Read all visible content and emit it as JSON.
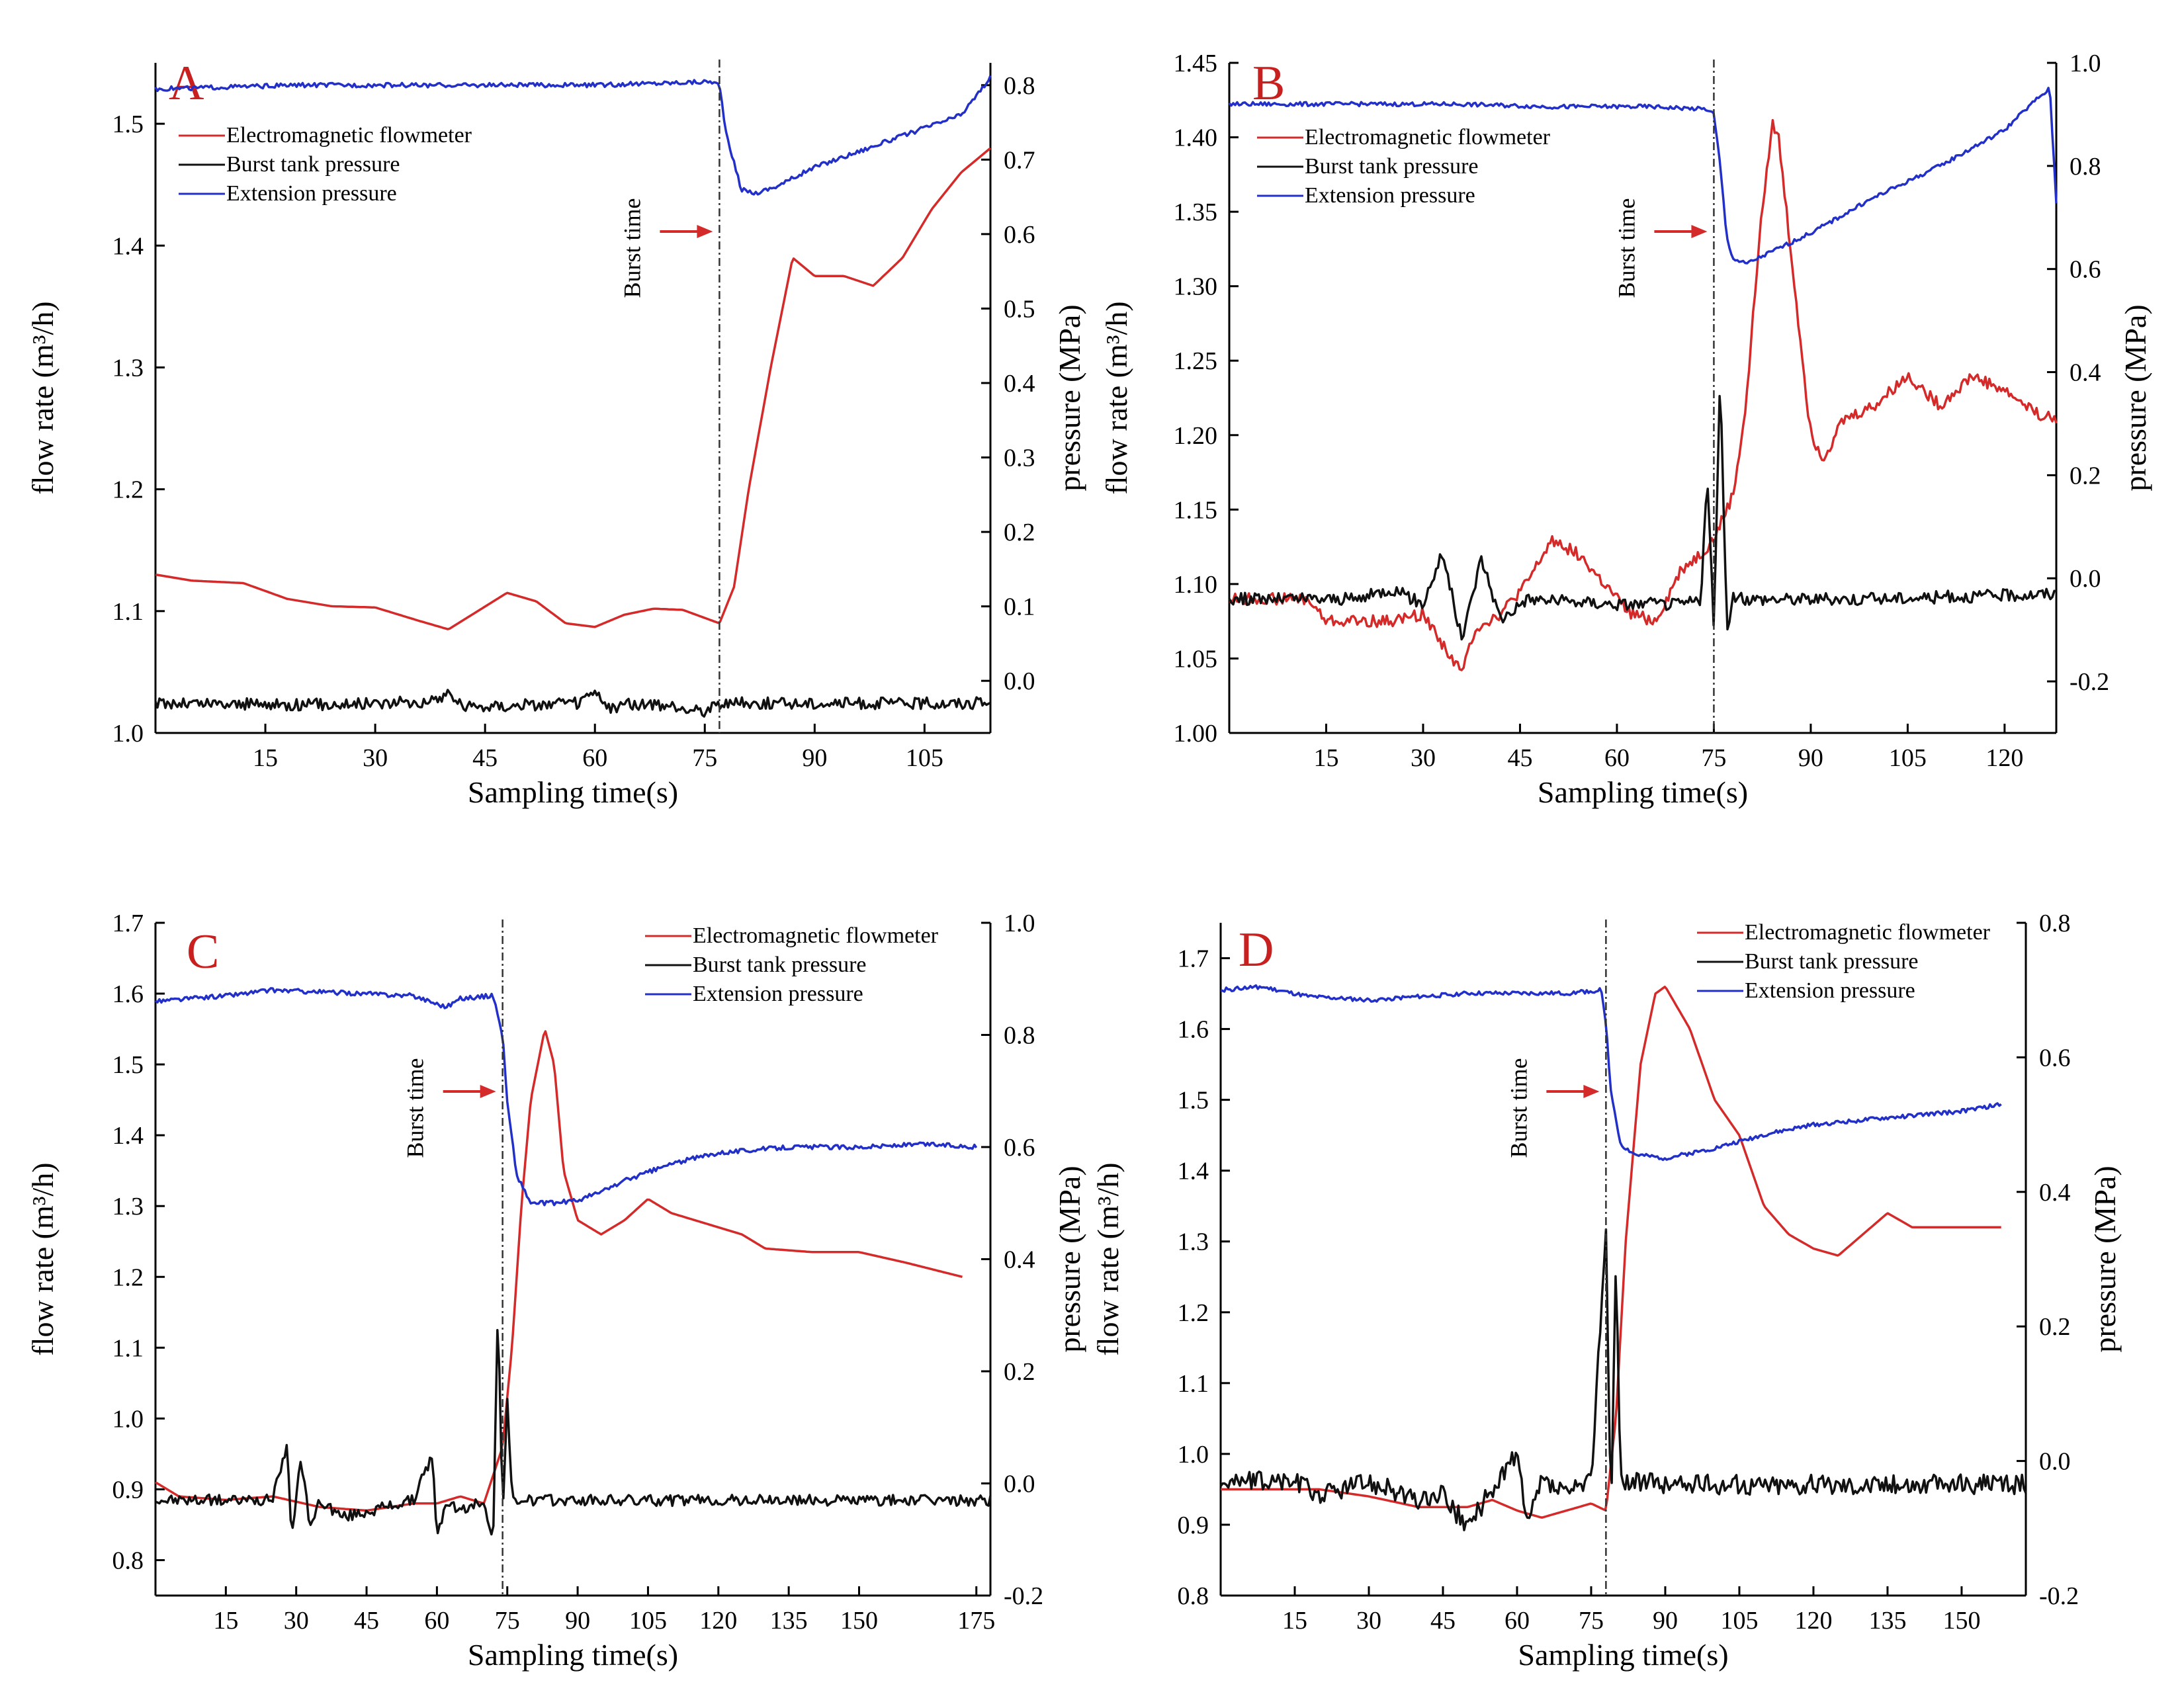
{
  "figure": {
    "colors": {
      "flowmeter": "#d42a2a",
      "burst_tank": "#111111",
      "extension": "#2230c8",
      "annotation": "#d42a2a"
    },
    "legend_labels": [
      "Electromagnetic flowmeter",
      "Burst tank pressure",
      "Extension pressure"
    ],
    "burst_label": "Burst time"
  },
  "chart_data": [
    {
      "panel": "A",
      "type": "line",
      "title": "",
      "xlabel": "Sampling time(s)",
      "ylabel_left": "flow rate (m³/h)",
      "ylabel_right": "pressure (MPa)",
      "xlim": [
        0,
        114
      ],
      "xticks": [
        15,
        30,
        45,
        60,
        75,
        90,
        105
      ],
      "ylim_left": [
        1.0,
        1.55
      ],
      "yticks_left": [
        1.0,
        1.1,
        1.2,
        1.3,
        1.4,
        1.5
      ],
      "ylim_right": [
        -0.07,
        0.83
      ],
      "yticks_right": [
        0.0,
        0.1,
        0.2,
        0.3,
        0.4,
        0.5,
        0.6,
        0.7,
        0.8
      ],
      "burst_time": 77,
      "legend": "top-left",
      "series": [
        {
          "name": "Electromagnetic flowmeter",
          "axis": "left",
          "color": "#d42a2a",
          "x": [
            0,
            5,
            12,
            18,
            24,
            30,
            36,
            40,
            44,
            48,
            52,
            56,
            60,
            64,
            68,
            72,
            77,
            79,
            81,
            84,
            87,
            90,
            94,
            98,
            102,
            106,
            110,
            114
          ],
          "y": [
            1.13,
            1.125,
            1.123,
            1.11,
            1.104,
            1.103,
            1.092,
            1.085,
            1.1,
            1.115,
            1.108,
            1.09,
            1.087,
            1.097,
            1.102,
            1.101,
            1.09,
            1.12,
            1.2,
            1.3,
            1.39,
            1.375,
            1.375,
            1.367,
            1.39,
            1.43,
            1.46,
            1.48
          ]
        },
        {
          "name": "Burst tank pressure",
          "axis": "right",
          "color": "#111111",
          "noise": 0.008,
          "x": [
            0,
            20,
            38,
            40,
            42,
            58,
            60,
            62,
            64,
            75,
            77,
            79,
            90,
            114
          ],
          "y": [
            -0.03,
            -0.032,
            -0.028,
            -0.015,
            -0.035,
            -0.03,
            -0.015,
            -0.04,
            -0.03,
            -0.04,
            -0.03,
            -0.03,
            -0.03,
            -0.03
          ]
        },
        {
          "name": "Extension pressure",
          "axis": "right",
          "color": "#2230c8",
          "noise": 0.003,
          "x": [
            0,
            20,
            40,
            60,
            76,
            77,
            78,
            80,
            82,
            85,
            90,
            100,
            110,
            114
          ],
          "y": [
            0.795,
            0.8,
            0.8,
            0.8,
            0.805,
            0.8,
            0.73,
            0.66,
            0.655,
            0.665,
            0.69,
            0.725,
            0.76,
            0.81
          ]
        }
      ]
    },
    {
      "panel": "B",
      "type": "line",
      "title": "",
      "xlabel": "Sampling time(s)",
      "ylabel_left": "flow rate (m³/h)",
      "ylabel_right": "pressure (MPa)",
      "xlim": [
        0,
        128
      ],
      "xticks": [
        15,
        30,
        45,
        60,
        75,
        90,
        105,
        120
      ],
      "ylim_left": [
        1.0,
        1.45
      ],
      "yticks_left": [
        1.0,
        1.05,
        1.1,
        1.15,
        1.2,
        1.25,
        1.3,
        1.35,
        1.4,
        1.45
      ],
      "ylim_right": [
        -0.3,
        1.0
      ],
      "yticks_right": [
        -0.2,
        0.0,
        0.2,
        0.4,
        0.6,
        0.8,
        1.0
      ],
      "burst_time": 75,
      "legend": "top-left",
      "series": [
        {
          "name": "Electromagnetic flowmeter",
          "axis": "left",
          "color": "#d42a2a",
          "noise": 0.004,
          "x": [
            0,
            12,
            15,
            25,
            30,
            33,
            36,
            38,
            42,
            46,
            50,
            54,
            58,
            62,
            66,
            70,
            73,
            75,
            78,
            80,
            82,
            84,
            85,
            86,
            88,
            90,
            92,
            95,
            100,
            105,
            110,
            115,
            120,
            125,
            128
          ],
          "y": [
            1.09,
            1.09,
            1.075,
            1.075,
            1.08,
            1.06,
            1.04,
            1.07,
            1.08,
            1.1,
            1.13,
            1.12,
            1.1,
            1.08,
            1.075,
            1.11,
            1.12,
            1.13,
            1.16,
            1.22,
            1.33,
            1.41,
            1.4,
            1.36,
            1.28,
            1.2,
            1.185,
            1.21,
            1.22,
            1.24,
            1.22,
            1.24,
            1.23,
            1.215,
            1.21
          ]
        },
        {
          "name": "Burst tank pressure",
          "axis": "right",
          "color": "#111111",
          "noise": 0.012,
          "x": [
            0,
            20,
            25,
            30,
            33,
            36,
            39,
            42,
            46,
            60,
            70,
            73,
            74,
            75,
            76,
            77,
            78,
            100,
            128
          ],
          "y": [
            -0.04,
            -0.04,
            -0.02,
            -0.05,
            0.05,
            -0.12,
            0.04,
            -0.08,
            -0.04,
            -0.05,
            -0.05,
            -0.04,
            0.2,
            -0.1,
            0.4,
            -0.1,
            -0.04,
            -0.04,
            -0.03
          ]
        },
        {
          "name": "Extension pressure",
          "axis": "right",
          "color": "#2230c8",
          "noise": 0.004,
          "x": [
            0,
            20,
            35,
            50,
            65,
            74,
            75,
            76,
            77,
            78,
            80,
            90,
            100,
            110,
            120,
            125,
            127,
            128
          ],
          "y": [
            0.92,
            0.92,
            0.92,
            0.915,
            0.915,
            0.91,
            0.9,
            0.8,
            0.66,
            0.62,
            0.61,
            0.67,
            0.74,
            0.8,
            0.87,
            0.93,
            0.95,
            0.73
          ]
        }
      ]
    },
    {
      "panel": "C",
      "type": "line",
      "title": "",
      "xlabel": "Sampling time(s)",
      "ylabel_left": "flow rate (m³/h)",
      "ylabel_right": "pressure (MPa)",
      "xlim": [
        0,
        178
      ],
      "xticks": [
        15,
        30,
        45,
        60,
        75,
        90,
        105,
        120,
        135,
        150,
        175
      ],
      "ylim_left": [
        0.75,
        1.7
      ],
      "yticks_left": [
        0.8,
        0.9,
        1.0,
        1.1,
        1.2,
        1.3,
        1.4,
        1.5,
        1.6,
        1.7
      ],
      "ylim_right": [
        -0.2,
        1.0
      ],
      "yticks_right": [
        -0.2,
        0.0,
        0.2,
        0.4,
        0.6,
        0.8,
        1.0
      ],
      "burst_time": 74,
      "legend": "top-right",
      "series": [
        {
          "name": "Electromagnetic flowmeter",
          "axis": "left",
          "color": "#d42a2a",
          "x": [
            0,
            5,
            15,
            25,
            35,
            45,
            55,
            60,
            65,
            70,
            74,
            76,
            78,
            80,
            83,
            85,
            87,
            90,
            95,
            100,
            105,
            110,
            120,
            125,
            130,
            140,
            150,
            160,
            172
          ],
          "y": [
            0.91,
            0.89,
            0.885,
            0.89,
            0.875,
            0.87,
            0.88,
            0.88,
            0.89,
            0.88,
            0.96,
            1.1,
            1.3,
            1.45,
            1.55,
            1.5,
            1.35,
            1.28,
            1.26,
            1.28,
            1.31,
            1.29,
            1.27,
            1.26,
            1.24,
            1.235,
            1.235,
            1.22,
            1.2
          ]
        },
        {
          "name": "Burst tank pressure",
          "axis": "right",
          "color": "#111111",
          "noise": 0.01,
          "x": [
            0,
            25,
            28,
            29,
            31,
            33,
            35,
            40,
            55,
            59,
            60,
            62,
            65,
            70,
            72,
            73,
            74,
            75,
            76,
            80,
            178
          ],
          "y": [
            -0.03,
            -0.03,
            0.07,
            -0.09,
            0.04,
            -0.08,
            -0.03,
            -0.06,
            -0.03,
            0.05,
            -0.1,
            -0.03,
            -0.05,
            -0.03,
            -0.1,
            0.32,
            -0.05,
            0.15,
            -0.03,
            -0.03,
            -0.03
          ]
        },
        {
          "name": "Extension pressure",
          "axis": "right",
          "color": "#2230c8",
          "noise": 0.004,
          "x": [
            0,
            15,
            25,
            40,
            55,
            62,
            65,
            72,
            74,
            75,
            77,
            80,
            85,
            90,
            95,
            100,
            110,
            120,
            135,
            150,
            165,
            175
          ],
          "y": [
            0.86,
            0.87,
            0.88,
            0.875,
            0.87,
            0.85,
            0.865,
            0.87,
            0.8,
            0.68,
            0.55,
            0.5,
            0.5,
            0.505,
            0.52,
            0.54,
            0.57,
            0.59,
            0.6,
            0.6,
            0.605,
            0.6
          ]
        }
      ]
    },
    {
      "panel": "D",
      "type": "line",
      "title": "",
      "xlabel": "Sampling time(s)",
      "ylabel_left": "flow rate (m³/h)",
      "ylabel_right": "pressure (MPa)",
      "xlim": [
        0,
        163
      ],
      "xticks": [
        15,
        30,
        45,
        60,
        75,
        90,
        105,
        120,
        135,
        150
      ],
      "ylim_left": [
        0.8,
        1.75
      ],
      "yticks_left": [
        0.8,
        0.9,
        1.0,
        1.1,
        1.2,
        1.3,
        1.4,
        1.5,
        1.6,
        1.7
      ],
      "ylim_right": [
        -0.2,
        0.8
      ],
      "yticks_right": [
        -0.2,
        0.0,
        0.2,
        0.4,
        0.6,
        0.8
      ],
      "burst_time": 78,
      "legend": "top-right",
      "series": [
        {
          "name": "Electromagnetic flowmeter",
          "axis": "left",
          "color": "#d42a2a",
          "x": [
            0,
            10,
            20,
            30,
            40,
            50,
            55,
            60,
            65,
            70,
            75,
            78,
            80,
            82,
            85,
            88,
            90,
            95,
            100,
            105,
            110,
            115,
            120,
            125,
            130,
            135,
            140,
            150,
            158
          ],
          "y": [
            0.95,
            0.95,
            0.95,
            0.94,
            0.925,
            0.925,
            0.935,
            0.92,
            0.91,
            0.92,
            0.93,
            0.92,
            1.05,
            1.3,
            1.55,
            1.65,
            1.66,
            1.6,
            1.5,
            1.45,
            1.35,
            1.31,
            1.29,
            1.28,
            1.31,
            1.34,
            1.32,
            1.32,
            1.32
          ]
        },
        {
          "name": "Burst tank pressure",
          "axis": "right",
          "color": "#111111",
          "noise": 0.015,
          "x": [
            0,
            15,
            20,
            30,
            40,
            45,
            50,
            55,
            60,
            62,
            65,
            70,
            75,
            78,
            79,
            80,
            81,
            82,
            90,
            163
          ],
          "y": [
            -0.03,
            -0.03,
            -0.05,
            -0.03,
            -0.06,
            -0.05,
            -0.1,
            -0.04,
            0.01,
            -0.1,
            -0.03,
            -0.05,
            -0.03,
            0.35,
            -0.1,
            0.3,
            -0.03,
            -0.03,
            -0.035,
            -0.035
          ]
        },
        {
          "name": "Extension pressure",
          "axis": "right",
          "color": "#2230c8",
          "noise": 0.003,
          "x": [
            0,
            8,
            18,
            30,
            40,
            50,
            60,
            70,
            77,
            78,
            79,
            81,
            84,
            90,
            100,
            110,
            120,
            135,
            150,
            158
          ],
          "y": [
            0.7,
            0.705,
            0.69,
            0.685,
            0.69,
            0.695,
            0.695,
            0.695,
            0.7,
            0.65,
            0.55,
            0.47,
            0.455,
            0.45,
            0.465,
            0.485,
            0.5,
            0.51,
            0.52,
            0.53
          ]
        }
      ]
    }
  ]
}
